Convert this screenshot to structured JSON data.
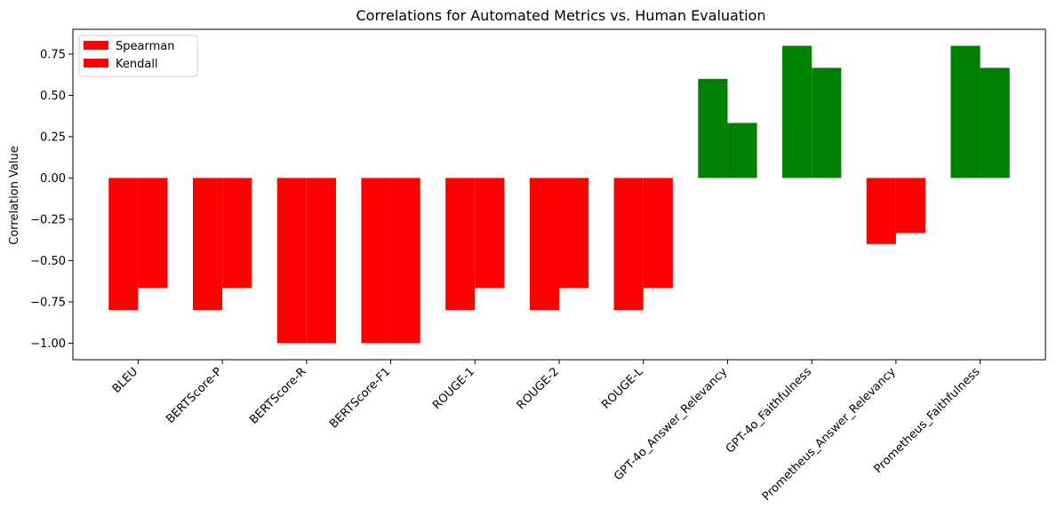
{
  "chart_data": {
    "type": "bar",
    "title": "Correlations for Automated Metrics vs. Human Evaluation",
    "xlabel": "",
    "ylabel": "Correlation Value",
    "ylim": [
      -1.1,
      0.9
    ],
    "yticks": [
      -1.0,
      -0.75,
      -0.5,
      -0.25,
      0.0,
      0.25,
      0.5,
      0.75
    ],
    "ytick_labels": [
      "−1.00",
      "−0.75",
      "−0.50",
      "−0.25",
      "0.00",
      "0.25",
      "0.50",
      "0.75"
    ],
    "categories": [
      "BLEU",
      "BERTScore-P",
      "BERTScore-R",
      "BERTScore-F1",
      "ROUGE-1",
      "ROUGE-2",
      "ROUGE-L",
      "GPT-4o_Answer_Relevancy",
      "GPT-4o_Faithfulness",
      "Prometheus_Answer_Relevancy",
      "Prometheus_Faithfulness"
    ],
    "series": [
      {
        "name": "Spearman",
        "values": [
          -0.8,
          -0.8,
          -1.0,
          -1.0,
          -0.8,
          -0.8,
          -0.8,
          0.6,
          0.8,
          -0.4,
          0.8
        ]
      },
      {
        "name": "Kendall",
        "values": [
          -0.6667,
          -0.6667,
          -1.0,
          -1.0,
          -0.6667,
          -0.6667,
          -0.6667,
          0.3333,
          0.6667,
          -0.3333,
          0.6667
        ]
      }
    ],
    "colors": {
      "positive": "#008000",
      "negative": "#ff0000"
    },
    "legend": {
      "placement": "top-left",
      "entries": [
        "Spearman",
        "Kendall"
      ]
    },
    "grid": false
  }
}
